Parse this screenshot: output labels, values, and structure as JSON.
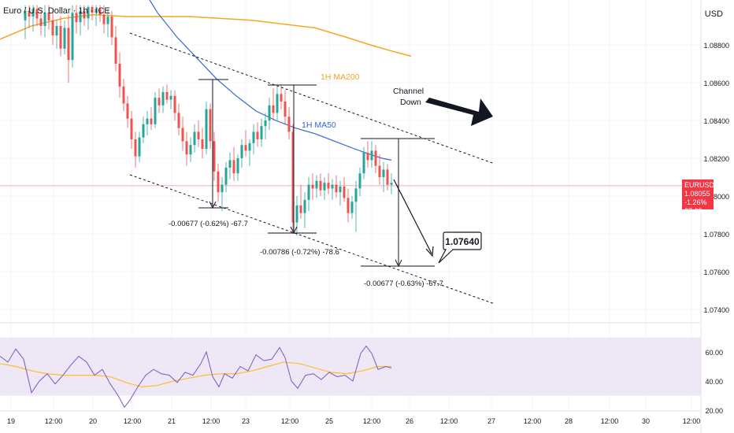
{
  "header": {
    "symbol_title": "Euro / U.S. Dollar · 1h · ICE",
    "currency": "USD"
  },
  "price_tag": {
    "symbol": "EURUSD",
    "price": "1.08055",
    "change": "-1.26%",
    "countdown": "37:03",
    "color": "#f23645"
  },
  "colors": {
    "bull": "#26a69a",
    "bear": "#ef5350",
    "ma50": "#3366cc",
    "ma200": "#f5a623",
    "rsi": "#7e57c2",
    "rsi_ma": "#fbc02d",
    "rsi_band": "#ede7f6"
  },
  "chart_data": [
    {
      "type": "candlestick",
      "y_axis_ticks": [
        "1.08800",
        "1.08600",
        "1.08400",
        "1.08200",
        "1.08000",
        "1.07800",
        "1.07600",
        "1.07400"
      ],
      "ylim": [
        1.0726,
        1.0902
      ],
      "x_axis_ticks": [
        "19",
        "12:00",
        "20",
        "12:00",
        "21",
        "12:00",
        "23",
        "12:00",
        "25",
        "12:00",
        "26",
        "12:00",
        "27",
        "12:00",
        "28",
        "12:00",
        "30",
        "12:00"
      ],
      "annotations": {
        "ma200_label": "1H MA200",
        "ma50_label": "1H MA50",
        "channel_label_1": "Channel",
        "channel_label_2": "Down",
        "measure_1": "-0.00677 (-0.62%) -67.7",
        "measure_2": "-0.00786 (-0.72%) -78.6",
        "measure_3": "-0.00677 (-0.63%) -67.7",
        "target": "1.07640"
      },
      "ma200": [
        [
          0,
          1.0883
        ],
        [
          40,
          1.089
        ],
        [
          80,
          1.0894
        ],
        [
          120,
          1.0896
        ],
        [
          160,
          1.0895
        ],
        [
          200,
          1.0895
        ],
        [
          240,
          1.0895
        ],
        [
          280,
          1.0894
        ],
        [
          320,
          1.0893
        ],
        [
          360,
          1.0891
        ],
        [
          400,
          1.0889
        ],
        [
          440,
          1.0884
        ],
        [
          470,
          1.088
        ],
        [
          495,
          1.0877
        ],
        [
          522,
          1.0874
        ]
      ],
      "ma50": [
        [
          175,
          1.0914
        ],
        [
          200,
          1.0897
        ],
        [
          225,
          1.0884
        ],
        [
          250,
          1.0873
        ],
        [
          275,
          1.0862
        ],
        [
          300,
          1.0853
        ],
        [
          325,
          1.0845
        ],
        [
          350,
          1.084
        ],
        [
          375,
          1.0836
        ],
        [
          400,
          1.0833
        ],
        [
          425,
          1.0829
        ],
        [
          450,
          1.0825
        ],
        [
          470,
          1.0822
        ],
        [
          485,
          1.082
        ],
        [
          497,
          1.0819
        ]
      ],
      "candles": [
        [
          32,
          1.0893,
          1.0901,
          1.0883,
          1.0898
        ],
        [
          37,
          1.0898,
          1.0901,
          1.0889,
          1.0895
        ],
        [
          42,
          1.0895,
          1.0901,
          1.0887,
          1.0899
        ],
        [
          47,
          1.0899,
          1.0901,
          1.089,
          1.0894
        ],
        [
          52,
          1.0894,
          1.0899,
          1.0885,
          1.089
        ],
        [
          57,
          1.089,
          1.0901,
          1.0884,
          1.0897
        ],
        [
          62,
          1.0897,
          1.0901,
          1.0888,
          1.0893
        ],
        [
          67,
          1.0893,
          1.0899,
          1.088,
          1.0885
        ],
        [
          72,
          1.0885,
          1.0893,
          1.0878,
          1.089
        ],
        [
          77,
          1.089,
          1.0895,
          1.0874,
          1.0878
        ],
        [
          82,
          1.0878,
          1.0893,
          1.0875,
          1.0889
        ],
        [
          87,
          1.0889,
          1.0896,
          1.086,
          1.0872
        ],
        [
          92,
          1.0872,
          1.0901,
          1.0868,
          1.0897
        ],
        [
          97,
          1.0897,
          1.0901,
          1.0886,
          1.0892
        ],
        [
          102,
          1.0892,
          1.0901,
          1.0885,
          1.0898
        ],
        [
          107,
          1.0898,
          1.0901,
          1.089,
          1.0894
        ],
        [
          112,
          1.0894,
          1.0901,
          1.0888,
          1.09
        ],
        [
          117,
          1.09,
          1.0901,
          1.0893,
          1.0897
        ],
        [
          122,
          1.0897,
          1.0901,
          1.089,
          1.0899
        ],
        [
          127,
          1.0899,
          1.0901,
          1.0892,
          1.0896
        ],
        [
          132,
          1.0896,
          1.0901,
          1.0886,
          1.0891
        ],
        [
          137,
          1.0891,
          1.0899,
          1.0884,
          1.0895
        ],
        [
          142,
          1.0895,
          1.0898,
          1.088,
          1.0884
        ],
        [
          147,
          1.0884,
          1.089,
          1.0866,
          1.087
        ],
        [
          152,
          1.087,
          1.0876,
          1.0852,
          1.0858
        ],
        [
          157,
          1.0858,
          1.0862,
          1.0845,
          1.0849
        ],
        [
          162,
          1.0849,
          1.0853,
          1.0836,
          1.0841
        ],
        [
          167,
          1.0841,
          1.0845,
          1.0825,
          1.083
        ],
        [
          172,
          1.083,
          1.0834,
          1.0815,
          1.0821
        ],
        [
          177,
          1.0821,
          1.0834,
          1.0818,
          1.0831
        ],
        [
          182,
          1.0831,
          1.0842,
          1.0828,
          1.0838
        ],
        [
          187,
          1.0838,
          1.0845,
          1.0832,
          1.0841
        ],
        [
          192,
          1.0841,
          1.0847,
          1.0835,
          1.0838
        ],
        [
          197,
          1.0838,
          1.0855,
          1.0836,
          1.0852
        ],
        [
          202,
          1.0852,
          1.0857,
          1.0844,
          1.0848
        ],
        [
          207,
          1.0848,
          1.0858,
          1.0844,
          1.0855
        ],
        [
          212,
          1.0855,
          1.0859,
          1.0849,
          1.0851
        ],
        [
          217,
          1.0851,
          1.0856,
          1.0846,
          1.0853
        ],
        [
          222,
          1.0853,
          1.0856,
          1.084,
          1.0844
        ],
        [
          227,
          1.0844,
          1.0849,
          1.0832,
          1.0836
        ],
        [
          232,
          1.0836,
          1.0842,
          1.0824,
          1.0829
        ],
        [
          237,
          1.0829,
          1.0834,
          1.0816,
          1.0822
        ],
        [
          242,
          1.0822,
          1.0831,
          1.0818,
          1.0827
        ],
        [
          247,
          1.0827,
          1.0838,
          1.0823,
          1.0834
        ],
        [
          252,
          1.0834,
          1.084,
          1.0826,
          1.083
        ],
        [
          257,
          1.083,
          1.0836,
          1.082,
          1.0825
        ],
        [
          262,
          1.0825,
          1.085,
          1.0822,
          1.0846
        ],
        [
          267,
          1.0846,
          1.0849,
          1.0825,
          1.0829
        ],
        [
          272,
          1.0829,
          1.0834,
          1.0808,
          1.0813
        ],
        [
          277,
          1.0813,
          1.0817,
          1.0797,
          1.0802
        ],
        [
          282,
          1.0802,
          1.081,
          1.0792,
          1.0806
        ],
        [
          287,
          1.0806,
          1.0818,
          1.0802,
          1.0815
        ],
        [
          292,
          1.0815,
          1.0823,
          1.0809,
          1.0819
        ],
        [
          297,
          1.0819,
          1.0826,
          1.0808,
          1.0812
        ],
        [
          302,
          1.0812,
          1.0822,
          1.0808,
          1.082
        ],
        [
          307,
          1.082,
          1.083,
          1.0815,
          1.0827
        ],
        [
          312,
          1.0827,
          1.0835,
          1.0821,
          1.0824
        ],
        [
          317,
          1.0824,
          1.083,
          1.0816,
          1.0828
        ],
        [
          322,
          1.0828,
          1.0838,
          1.0822,
          1.0834
        ],
        [
          327,
          1.0834,
          1.0839,
          1.0826,
          1.083
        ],
        [
          332,
          1.083,
          1.0841,
          1.0826,
          1.0837
        ],
        [
          337,
          1.0837,
          1.0844,
          1.083,
          1.084
        ],
        [
          342,
          1.084,
          1.0852,
          1.0835,
          1.0848
        ],
        [
          347,
          1.0848,
          1.0857,
          1.084,
          1.0844
        ],
        [
          352,
          1.0844,
          1.0858,
          1.084,
          1.0854
        ],
        [
          357,
          1.0854,
          1.0859,
          1.0846,
          1.085
        ],
        [
          362,
          1.085,
          1.0856,
          1.0838,
          1.0842
        ],
        [
          367,
          1.0842,
          1.0847,
          1.083,
          1.0834
        ],
        [
          372,
          1.0834,
          1.0838,
          1.078,
          1.0786
        ],
        [
          377,
          1.0786,
          1.08,
          1.0779,
          1.0795
        ],
        [
          382,
          1.0795,
          1.0806,
          1.0788,
          1.0791
        ],
        [
          387,
          1.0791,
          1.0802,
          1.0783,
          1.0798
        ],
        [
          392,
          1.0798,
          1.081,
          1.0792,
          1.0806
        ],
        [
          397,
          1.0806,
          1.0812,
          1.0798,
          1.0804
        ],
        [
          402,
          1.0804,
          1.0811,
          1.0799,
          1.0808
        ],
        [
          407,
          1.0808,
          1.0812,
          1.08,
          1.0803
        ],
        [
          412,
          1.0803,
          1.081,
          1.0798,
          1.0807
        ],
        [
          417,
          1.0807,
          1.0812,
          1.0801,
          1.0804
        ],
        [
          422,
          1.0804,
          1.0809,
          1.0798,
          1.0806
        ],
        [
          427,
          1.0806,
          1.0811,
          1.0799,
          1.0802
        ],
        [
          432,
          1.0802,
          1.0808,
          1.0795,
          1.0805
        ],
        [
          437,
          1.0805,
          1.081,
          1.0797,
          1.0799
        ],
        [
          442,
          1.0799,
          1.0804,
          1.0786,
          1.0791
        ],
        [
          447,
          1.0791,
          1.08,
          1.0788,
          1.0797
        ],
        [
          452,
          1.0797,
          1.0808,
          1.0781,
          1.0804
        ],
        [
          457,
          1.0804,
          1.0815,
          1.08,
          1.0812
        ],
        [
          462,
          1.0812,
          1.0826,
          1.0809,
          1.0823
        ],
        [
          467,
          1.0823,
          1.0829,
          1.0815,
          1.0819
        ],
        [
          472,
          1.0819,
          1.0829,
          1.0815,
          1.0824
        ],
        [
          477,
          1.0824,
          1.0827,
          1.0812,
          1.0816
        ],
        [
          482,
          1.0816,
          1.0822,
          1.0806,
          1.081
        ],
        [
          487,
          1.081,
          1.0818,
          1.0802,
          1.0814
        ],
        [
          492,
          1.0814,
          1.0817,
          1.0803,
          1.0806
        ],
        [
          497,
          1.0806,
          1.0812,
          1.0801,
          1.0807
        ]
      ]
    },
    {
      "type": "line",
      "name": "RSI",
      "y_axis_ticks": [
        "60.00",
        "40.00",
        "20.00"
      ],
      "ylim": [
        18,
        72
      ],
      "band": [
        30,
        70
      ],
      "rsi": [
        [
          0,
          57
        ],
        [
          10,
          53
        ],
        [
          20,
          62
        ],
        [
          30,
          55
        ],
        [
          40,
          32
        ],
        [
          50,
          40
        ],
        [
          60,
          45
        ],
        [
          70,
          38
        ],
        [
          80,
          44
        ],
        [
          90,
          51
        ],
        [
          100,
          57
        ],
        [
          110,
          53
        ],
        [
          120,
          44
        ],
        [
          130,
          48
        ],
        [
          140,
          38
        ],
        [
          150,
          30
        ],
        [
          158,
          22
        ],
        [
          165,
          27
        ],
        [
          175,
          36
        ],
        [
          185,
          44
        ],
        [
          195,
          48
        ],
        [
          205,
          45
        ],
        [
          215,
          44
        ],
        [
          225,
          39
        ],
        [
          235,
          46
        ],
        [
          245,
          44
        ],
        [
          255,
          52
        ],
        [
          262,
          60
        ],
        [
          270,
          43
        ],
        [
          278,
          36
        ],
        [
          285,
          45
        ],
        [
          295,
          42
        ],
        [
          305,
          50
        ],
        [
          315,
          47
        ],
        [
          325,
          58
        ],
        [
          335,
          54
        ],
        [
          345,
          55
        ],
        [
          355,
          63
        ],
        [
          362,
          56
        ],
        [
          370,
          40
        ],
        [
          378,
          35
        ],
        [
          388,
          44
        ],
        [
          398,
          45
        ],
        [
          408,
          41
        ],
        [
          418,
          46
        ],
        [
          428,
          43
        ],
        [
          438,
          44
        ],
        [
          448,
          40
        ],
        [
          458,
          59
        ],
        [
          465,
          64
        ],
        [
          472,
          59
        ],
        [
          480,
          48
        ],
        [
          490,
          50
        ],
        [
          497,
          49
        ]
      ],
      "rsi_ma": [
        [
          0,
          52
        ],
        [
          20,
          50
        ],
        [
          40,
          47
        ],
        [
          60,
          45
        ],
        [
          80,
          44
        ],
        [
          100,
          44
        ],
        [
          120,
          44
        ],
        [
          140,
          43
        ],
        [
          160,
          39
        ],
        [
          180,
          36
        ],
        [
          200,
          37
        ],
        [
          220,
          40
        ],
        [
          240,
          42
        ],
        [
          260,
          44
        ],
        [
          280,
          45
        ],
        [
          300,
          45
        ],
        [
          320,
          47
        ],
        [
          340,
          50
        ],
        [
          360,
          53
        ],
        [
          380,
          52
        ],
        [
          400,
          49
        ],
        [
          420,
          46
        ],
        [
          440,
          45
        ],
        [
          460,
          47
        ],
        [
          480,
          50
        ],
        [
          497,
          50
        ]
      ]
    }
  ]
}
